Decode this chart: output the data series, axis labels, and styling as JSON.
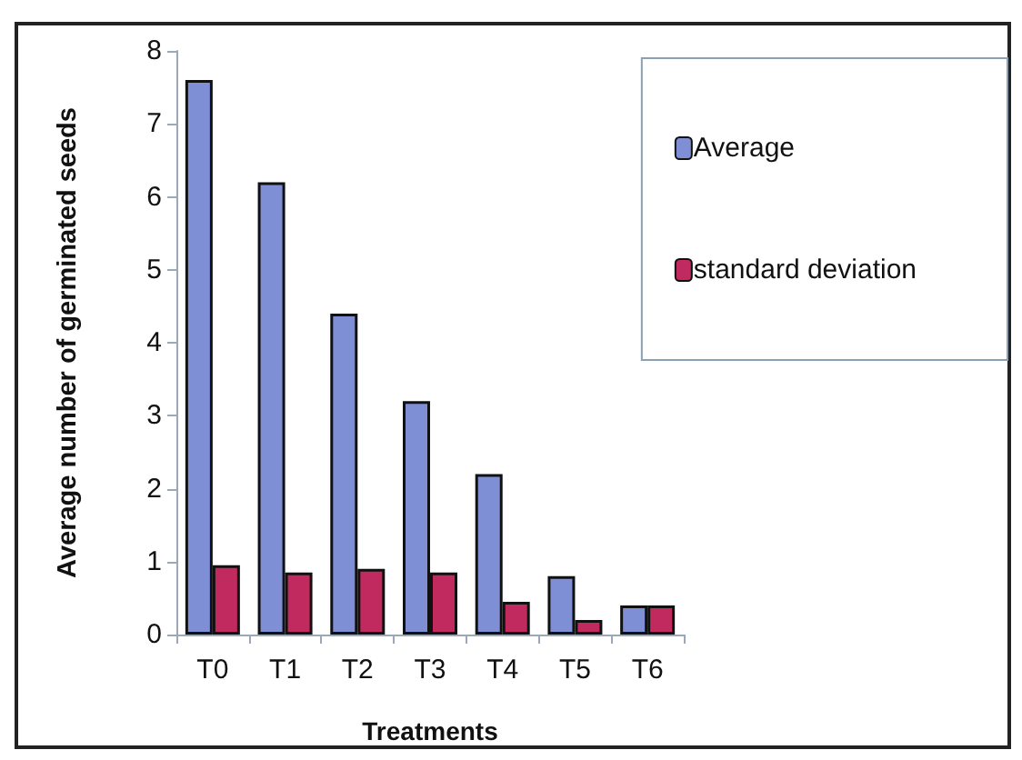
{
  "chart_data": {
    "type": "bar",
    "xlabel": "Treatments",
    "ylabel": "Average number of germinated seeds",
    "categories": [
      "T0",
      "T1",
      "T2",
      "T3",
      "T4",
      "T5",
      "T6"
    ],
    "series": [
      {
        "name": "Average",
        "color": "#7f8fd6",
        "values": [
          7.6,
          6.2,
          4.4,
          3.2,
          2.2,
          0.8,
          0.4
        ]
      },
      {
        "name": "standard deviation",
        "color": "#c02a5e",
        "values": [
          0.95,
          0.85,
          0.9,
          0.85,
          0.45,
          0.2,
          0.4
        ]
      }
    ],
    "ylim": [
      0,
      8
    ],
    "yticks": [
      0,
      1,
      2,
      3,
      4,
      5,
      6,
      7,
      8
    ],
    "grid": false,
    "legend": "top right"
  }
}
